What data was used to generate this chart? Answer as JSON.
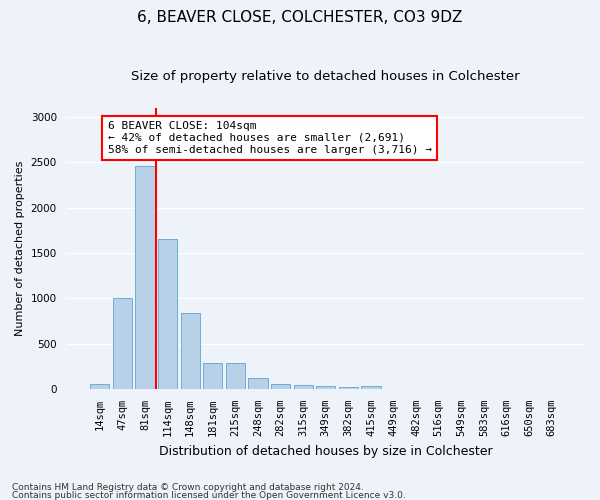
{
  "title": "6, BEAVER CLOSE, COLCHESTER, CO3 9DZ",
  "subtitle": "Size of property relative to detached houses in Colchester",
  "xlabel": "Distribution of detached houses by size in Colchester",
  "ylabel": "Number of detached properties",
  "categories": [
    "14sqm",
    "47sqm",
    "81sqm",
    "114sqm",
    "148sqm",
    "181sqm",
    "215sqm",
    "248sqm",
    "282sqm",
    "315sqm",
    "349sqm",
    "382sqm",
    "415sqm",
    "449sqm",
    "482sqm",
    "516sqm",
    "549sqm",
    "583sqm",
    "616sqm",
    "650sqm",
    "683sqm"
  ],
  "values": [
    55,
    1000,
    2460,
    1650,
    840,
    290,
    285,
    120,
    55,
    45,
    35,
    20,
    30,
    0,
    0,
    0,
    0,
    0,
    0,
    0,
    0
  ],
  "bar_color": "#b8d0e8",
  "bar_edge_color": "#6baed6",
  "vline_index": 3,
  "vline_color": "red",
  "annotation_line1": "6 BEAVER CLOSE: 104sqm",
  "annotation_line2": "← 42% of detached houses are smaller (2,691)",
  "annotation_line3": "58% of semi-detached houses are larger (3,716) →",
  "annotation_box_color": "white",
  "annotation_box_edge_color": "red",
  "ylim_max": 3100,
  "yticks": [
    0,
    500,
    1000,
    1500,
    2000,
    2500,
    3000
  ],
  "background_color": "#eef2f9",
  "footer_line1": "Contains HM Land Registry data © Crown copyright and database right 2024.",
  "footer_line2": "Contains public sector information licensed under the Open Government Licence v3.0.",
  "title_fontsize": 11,
  "subtitle_fontsize": 9.5,
  "xlabel_fontsize": 9,
  "ylabel_fontsize": 8,
  "tick_fontsize": 7.5,
  "annotation_fontsize": 8,
  "footer_fontsize": 6.5
}
